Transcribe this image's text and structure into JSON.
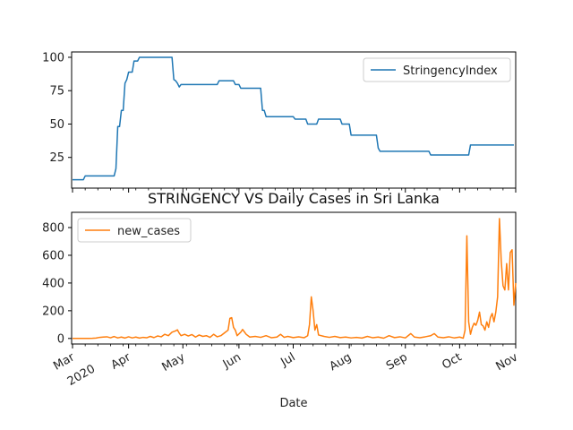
{
  "chart_data": [
    {
      "type": "line",
      "title": "",
      "xlabel": "",
      "ylabel": "",
      "ylim": [
        2,
        104
      ],
      "yticks": [
        25,
        50,
        75,
        100
      ],
      "legend": "top-right",
      "series": [
        {
          "name": "StringencyIndex",
          "color": "#1f77b4",
          "points": [
            [
              "2020-03-01",
              8.33
            ],
            [
              "2020-03-07",
              8.33
            ],
            [
              "2020-03-08",
              11.11
            ],
            [
              "2020-03-15",
              11.11
            ],
            [
              "2020-03-24",
              11.11
            ],
            [
              "2020-03-25",
              16.67
            ],
            [
              "2020-03-26",
              48.15
            ],
            [
              "2020-03-27",
              48.15
            ],
            [
              "2020-03-28",
              60.19
            ],
            [
              "2020-03-29",
              60.19
            ],
            [
              "2020-03-30",
              80.56
            ],
            [
              "2020-03-31",
              83.33
            ],
            [
              "2020-04-01",
              88.89
            ],
            [
              "2020-04-03",
              88.89
            ],
            [
              "2020-04-04",
              97.22
            ],
            [
              "2020-04-06",
              97.22
            ],
            [
              "2020-04-07",
              100.0
            ],
            [
              "2020-04-25",
              100.0
            ],
            [
              "2020-04-26",
              83.33
            ],
            [
              "2020-04-27",
              82.41
            ],
            [
              "2020-04-28",
              80.56
            ],
            [
              "2020-04-29",
              77.78
            ],
            [
              "2020-04-30",
              79.63
            ],
            [
              "2020-05-20",
              79.63
            ],
            [
              "2020-05-21",
              82.41
            ],
            [
              "2020-05-29",
              82.41
            ],
            [
              "2020-05-30",
              79.63
            ],
            [
              "2020-06-01",
              79.63
            ],
            [
              "2020-06-02",
              76.85
            ],
            [
              "2020-06-13",
              76.85
            ],
            [
              "2020-06-14",
              60.19
            ],
            [
              "2020-06-15",
              60.19
            ],
            [
              "2020-06-16",
              55.56
            ],
            [
              "2020-07-01",
              55.56
            ],
            [
              "2020-07-02",
              53.7
            ],
            [
              "2020-07-08",
              53.7
            ],
            [
              "2020-07-09",
              50.0
            ],
            [
              "2020-07-14",
              50.0
            ],
            [
              "2020-07-15",
              53.7
            ],
            [
              "2020-07-27",
              53.7
            ],
            [
              "2020-07-28",
              50.0
            ],
            [
              "2020-08-01",
              50.0
            ],
            [
              "2020-08-02",
              41.67
            ],
            [
              "2020-08-16",
              41.67
            ],
            [
              "2020-08-17",
              32.0
            ],
            [
              "2020-08-18",
              29.63
            ],
            [
              "2020-09-14",
              29.63
            ],
            [
              "2020-09-15",
              26.85
            ],
            [
              "2020-10-06",
              26.85
            ],
            [
              "2020-10-07",
              34.26
            ],
            [
              "2020-10-31",
              34.26
            ]
          ]
        }
      ]
    },
    {
      "type": "line",
      "title": "STRINGENCY VS Daily Cases in Sri Lanka",
      "xlabel": "Date",
      "ylabel": "",
      "ylim": [
        -40,
        910
      ],
      "yticks": [
        0,
        200,
        400,
        600,
        800
      ],
      "xlim": [
        "2020-03-01",
        "2020-10-31"
      ],
      "x_ticks": [
        {
          "date": "2020-03-01",
          "label": "Mar",
          "sublabel": "2020"
        },
        {
          "date": "2020-04-01",
          "label": "Apr"
        },
        {
          "date": "2020-05-01",
          "label": "May"
        },
        {
          "date": "2020-06-01",
          "label": "Jun"
        },
        {
          "date": "2020-07-01",
          "label": "Jul"
        },
        {
          "date": "2020-08-01",
          "label": "Aug"
        },
        {
          "date": "2020-09-01",
          "label": "Sep"
        },
        {
          "date": "2020-10-01",
          "label": "Oct"
        },
        {
          "date": "2020-11-01",
          "label": "Nov"
        }
      ],
      "legend": "top-left",
      "series": [
        {
          "name": "new_cases",
          "color": "#ff7f0e",
          "points": [
            [
              "2020-03-01",
              0
            ],
            [
              "2020-03-10",
              0
            ],
            [
              "2020-03-12",
              1
            ],
            [
              "2020-03-14",
              3
            ],
            [
              "2020-03-16",
              8
            ],
            [
              "2020-03-18",
              10
            ],
            [
              "2020-03-20",
              12
            ],
            [
              "2020-03-22",
              5
            ],
            [
              "2020-03-24",
              14
            ],
            [
              "2020-03-26",
              4
            ],
            [
              "2020-03-28",
              10
            ],
            [
              "2020-03-30",
              3
            ],
            [
              "2020-04-01",
              12
            ],
            [
              "2020-04-03",
              4
            ],
            [
              "2020-04-05",
              10
            ],
            [
              "2020-04-07",
              3
            ],
            [
              "2020-04-09",
              8
            ],
            [
              "2020-04-11",
              5
            ],
            [
              "2020-04-13",
              15
            ],
            [
              "2020-04-15",
              6
            ],
            [
              "2020-04-17",
              18
            ],
            [
              "2020-04-19",
              12
            ],
            [
              "2020-04-21",
              30
            ],
            [
              "2020-04-23",
              20
            ],
            [
              "2020-04-25",
              45
            ],
            [
              "2020-04-27",
              55
            ],
            [
              "2020-04-28",
              62
            ],
            [
              "2020-04-29",
              38
            ],
            [
              "2020-04-30",
              20
            ],
            [
              "2020-05-02",
              30
            ],
            [
              "2020-05-04",
              18
            ],
            [
              "2020-05-06",
              28
            ],
            [
              "2020-05-08",
              10
            ],
            [
              "2020-05-10",
              25
            ],
            [
              "2020-05-12",
              15
            ],
            [
              "2020-05-14",
              20
            ],
            [
              "2020-05-16",
              8
            ],
            [
              "2020-05-18",
              30
            ],
            [
              "2020-05-20",
              12
            ],
            [
              "2020-05-22",
              20
            ],
            [
              "2020-05-24",
              40
            ],
            [
              "2020-05-26",
              60
            ],
            [
              "2020-05-27",
              145
            ],
            [
              "2020-05-28",
              150
            ],
            [
              "2020-05-29",
              80
            ],
            [
              "2020-05-30",
              60
            ],
            [
              "2020-05-31",
              20
            ],
            [
              "2020-06-02",
              45
            ],
            [
              "2020-06-03",
              65
            ],
            [
              "2020-06-05",
              30
            ],
            [
              "2020-06-07",
              10
            ],
            [
              "2020-06-10",
              15
            ],
            [
              "2020-06-13",
              8
            ],
            [
              "2020-06-16",
              20
            ],
            [
              "2020-06-19",
              5
            ],
            [
              "2020-06-22",
              10
            ],
            [
              "2020-06-24",
              30
            ],
            [
              "2020-06-26",
              8
            ],
            [
              "2020-06-28",
              15
            ],
            [
              "2020-07-01",
              6
            ],
            [
              "2020-07-04",
              12
            ],
            [
              "2020-07-07",
              5
            ],
            [
              "2020-07-09",
              20
            ],
            [
              "2020-07-10",
              100
            ],
            [
              "2020-07-11",
              300
            ],
            [
              "2020-07-12",
              200
            ],
            [
              "2020-07-13",
              60
            ],
            [
              "2020-07-14",
              100
            ],
            [
              "2020-07-15",
              25
            ],
            [
              "2020-07-18",
              15
            ],
            [
              "2020-07-21",
              8
            ],
            [
              "2020-07-24",
              15
            ],
            [
              "2020-07-27",
              6
            ],
            [
              "2020-07-30",
              10
            ],
            [
              "2020-08-02",
              4
            ],
            [
              "2020-08-05",
              8
            ],
            [
              "2020-08-08",
              3
            ],
            [
              "2020-08-11",
              15
            ],
            [
              "2020-08-14",
              5
            ],
            [
              "2020-08-17",
              10
            ],
            [
              "2020-08-20",
              2
            ],
            [
              "2020-08-23",
              20
            ],
            [
              "2020-08-26",
              6
            ],
            [
              "2020-08-29",
              12
            ],
            [
              "2020-09-01",
              4
            ],
            [
              "2020-09-04",
              35
            ],
            [
              "2020-09-06",
              10
            ],
            [
              "2020-09-09",
              5
            ],
            [
              "2020-09-12",
              12
            ],
            [
              "2020-09-15",
              20
            ],
            [
              "2020-09-17",
              35
            ],
            [
              "2020-09-19",
              10
            ],
            [
              "2020-09-22",
              5
            ],
            [
              "2020-09-25",
              12
            ],
            [
              "2020-09-28",
              4
            ],
            [
              "2020-10-01",
              10
            ],
            [
              "2020-10-03",
              2
            ],
            [
              "2020-10-04",
              60
            ],
            [
              "2020-10-05",
              740
            ],
            [
              "2020-10-06",
              120
            ],
            [
              "2020-10-07",
              30
            ],
            [
              "2020-10-08",
              80
            ],
            [
              "2020-10-09",
              110
            ],
            [
              "2020-10-10",
              95
            ],
            [
              "2020-10-11",
              130
            ],
            [
              "2020-10-12",
              190
            ],
            [
              "2020-10-13",
              100
            ],
            [
              "2020-10-14",
              90
            ],
            [
              "2020-10-15",
              60
            ],
            [
              "2020-10-16",
              120
            ],
            [
              "2020-10-17",
              80
            ],
            [
              "2020-10-18",
              150
            ],
            [
              "2020-10-19",
              180
            ],
            [
              "2020-10-20",
              120
            ],
            [
              "2020-10-21",
              190
            ],
            [
              "2020-10-22",
              300
            ],
            [
              "2020-10-23",
              865
            ],
            [
              "2020-10-24",
              560
            ],
            [
              "2020-10-25",
              380
            ],
            [
              "2020-10-26",
              350
            ],
            [
              "2020-10-27",
              540
            ],
            [
              "2020-10-28",
              350
            ],
            [
              "2020-10-29",
              620
            ],
            [
              "2020-10-30",
              640
            ],
            [
              "2020-10-31",
              240
            ],
            [
              "2020-11-01",
              400
            ]
          ]
        }
      ]
    }
  ]
}
